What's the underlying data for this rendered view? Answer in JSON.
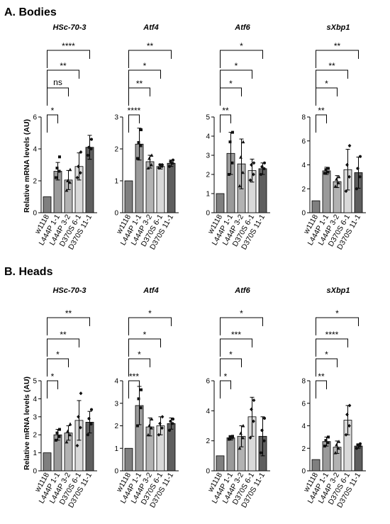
{
  "figure": {
    "section_a": "A. Bodies",
    "section_b": "B. Heads",
    "ylabel": "Relative mRNA levels (AU)"
  },
  "colors": {
    "bar_fills": [
      "#7f7f7f",
      "#9a9a9a",
      "#b2b2b2",
      "#d9d9d9",
      "#5e5e5e"
    ],
    "edge": "#000000"
  },
  "chart_data": [
    {
      "type": "bar",
      "panel": "A",
      "title": "HSc-70-3",
      "categories": [
        "w1118",
        "L444P 1-1",
        "L444P 3-2",
        "D370S 6-1",
        "D370S 11-1"
      ],
      "values": [
        1.0,
        2.6,
        2.05,
        2.9,
        4.1
      ],
      "errors": [
        0.05,
        0.55,
        0.6,
        0.85,
        0.75
      ],
      "points": [
        [
          1.0,
          1.0,
          1.0,
          1.0
        ],
        [
          2.2,
          2.6,
          2.8,
          3.5
        ],
        [
          1.4,
          1.9,
          2.0,
          2.7
        ],
        [
          2.2,
          2.5,
          2.9,
          3.8
        ],
        [
          3.6,
          4.0,
          4.1,
          4.6
        ]
      ],
      "ylim": [
        0,
        6
      ],
      "yticks": [
        0,
        2,
        4,
        6
      ],
      "significance": [
        "*",
        "ns",
        "**",
        "****"
      ]
    },
    {
      "type": "bar",
      "panel": "A",
      "title": "Atf4",
      "categories": [
        "w1118",
        "L444P 1-1",
        "L444P 3-2",
        "D370S 6-1",
        "D370S 11-1"
      ],
      "values": [
        1.0,
        2.15,
        1.6,
        1.45,
        1.55
      ],
      "errors": [
        0.03,
        0.5,
        0.2,
        0.08,
        0.1
      ],
      "points": [
        [
          1.0,
          1.0,
          1.0,
          1.0
        ],
        [
          1.7,
          2.1,
          2.2,
          2.6
        ],
        [
          1.4,
          1.5,
          1.7,
          1.8
        ],
        [
          1.4,
          1.45,
          1.5,
          1.5
        ],
        [
          1.45,
          1.55,
          1.6,
          1.65
        ]
      ],
      "ylim": [
        0,
        3
      ],
      "yticks": [
        0,
        1,
        2,
        3
      ],
      "significance": [
        "****",
        "**",
        "*",
        "**"
      ]
    },
    {
      "type": "bar",
      "panel": "A",
      "title": "Atf6",
      "categories": [
        "w1118",
        "L444P 1-1",
        "L444P 3-2",
        "D370S 6-1",
        "D370S 11-1"
      ],
      "values": [
        1.0,
        3.1,
        2.55,
        2.2,
        2.3
      ],
      "errors": [
        0.03,
        1.1,
        1.3,
        0.6,
        0.3
      ],
      "points": [
        [
          1.0,
          1.0,
          1.0,
          1.0
        ],
        [
          2.0,
          2.6,
          3.7,
          4.2
        ],
        [
          1.4,
          2.1,
          2.9,
          3.7
        ],
        [
          1.7,
          2.0,
          2.5,
          2.6
        ],
        [
          2.0,
          2.3,
          2.4,
          2.6
        ]
      ],
      "ylim": [
        0,
        5
      ],
      "yticks": [
        0,
        1,
        2,
        3,
        4,
        5
      ],
      "significance": [
        "**",
        "*",
        "*",
        "*"
      ]
    },
    {
      "type": "bar",
      "panel": "A",
      "title": "sXbp1",
      "categories": [
        "w1118",
        "L444P 1-1",
        "L444P 3-2",
        "D370S 6-1",
        "D370S 11-1"
      ],
      "values": [
        1.0,
        3.5,
        2.6,
        3.6,
        3.35
      ],
      "errors": [
        0.05,
        0.3,
        0.5,
        1.7,
        1.3
      ],
      "points": [
        [
          1.0,
          1.0,
          1.0,
          1.0
        ],
        [
          3.3,
          3.4,
          3.6,
          3.7
        ],
        [
          2.2,
          2.5,
          2.8,
          3.0
        ],
        [
          1.8,
          3.0,
          4.0,
          5.6
        ],
        [
          2.0,
          3.0,
          3.7,
          4.7
        ]
      ],
      "ylim": [
        0,
        8
      ],
      "yticks": [
        0,
        2,
        4,
        6,
        8
      ],
      "significance": [
        "**",
        "*",
        "**",
        "**"
      ]
    },
    {
      "type": "bar",
      "panel": "B",
      "title": "HSc-70-3",
      "categories": [
        "w1118",
        "L444P 1-1",
        "L444P 3-2",
        "D370S 6-1",
        "D370S 11-1"
      ],
      "values": [
        1.0,
        2.0,
        2.1,
        2.8,
        2.7
      ],
      "errors": [
        0.03,
        0.3,
        0.4,
        1.1,
        0.6
      ],
      "points": [
        [
          1.0,
          1.0,
          1.0,
          1.0
        ],
        [
          1.7,
          1.9,
          2.1,
          2.3
        ],
        [
          1.6,
          2.0,
          2.2,
          2.6
        ],
        [
          1.4,
          2.4,
          3.0,
          4.3
        ],
        [
          2.0,
          2.6,
          2.9,
          3.4
        ]
      ],
      "ylim": [
        0,
        5
      ],
      "yticks": [
        0,
        1,
        2,
        3,
        4,
        5
      ],
      "significance": [
        "*",
        "*",
        "**",
        "**"
      ]
    },
    {
      "type": "bar",
      "panel": "B",
      "title": "Atf4",
      "categories": [
        "w1118",
        "L444P 1-1",
        "L444P 3-2",
        "D370S 6-1",
        "D370S 11-1"
      ],
      "values": [
        1.0,
        2.9,
        1.95,
        2.0,
        2.1
      ],
      "errors": [
        0.03,
        0.85,
        0.4,
        0.4,
        0.25
      ],
      "points": [
        [
          1.0,
          1.0,
          1.0,
          1.0
        ],
        [
          2.0,
          2.8,
          3.2,
          3.6
        ],
        [
          1.6,
          1.9,
          2.0,
          2.3
        ],
        [
          1.6,
          1.9,
          2.1,
          2.4
        ],
        [
          1.8,
          2.1,
          2.2,
          2.3
        ]
      ],
      "ylim": [
        0,
        4
      ],
      "yticks": [
        0,
        1,
        2,
        3,
        4
      ],
      "significance": [
        "***",
        "*",
        "*",
        "*"
      ]
    },
    {
      "type": "bar",
      "panel": "B",
      "title": "Atf6",
      "categories": [
        "w1118",
        "L444P 1-1",
        "L444P 3-2",
        "D370S 6-1",
        "D370S 11-1"
      ],
      "values": [
        1.0,
        2.2,
        2.3,
        3.6,
        2.3
      ],
      "errors": [
        0.05,
        0.15,
        0.7,
        1.3,
        1.3
      ],
      "points": [
        [
          1.0,
          1.0,
          1.0,
          1.0
        ],
        [
          2.1,
          2.2,
          2.25,
          2.3
        ],
        [
          1.5,
          2.2,
          2.5,
          3.0
        ],
        [
          2.2,
          3.3,
          4.1,
          4.7
        ],
        [
          1.2,
          2.0,
          2.7,
          3.5
        ]
      ],
      "ylim": [
        0,
        6
      ],
      "yticks": [
        0,
        2,
        4,
        6
      ],
      "significance": [
        "*",
        "*",
        "***",
        "*"
      ]
    },
    {
      "type": "bar",
      "panel": "B",
      "title": "sXbp1",
      "categories": [
        "w1118",
        "L444P 1-1",
        "L444P 3-2",
        "D370S 6-1",
        "D370S 11-1"
      ],
      "values": [
        1.0,
        2.6,
        2.1,
        4.5,
        2.2
      ],
      "errors": [
        0.03,
        0.4,
        0.55,
        1.3,
        0.2
      ],
      "points": [
        [
          1.0,
          1.0,
          1.0,
          1.0
        ],
        [
          2.2,
          2.5,
          2.7,
          3.0
        ],
        [
          1.6,
          2.0,
          2.3,
          2.6
        ],
        [
          3.2,
          4.0,
          5.0,
          5.8
        ],
        [
          2.0,
          2.2,
          2.3,
          2.4
        ]
      ],
      "ylim": [
        0,
        8
      ],
      "yticks": [
        0,
        2,
        4,
        6,
        8
      ],
      "significance": [
        "**",
        "*",
        "****",
        "*"
      ]
    }
  ]
}
